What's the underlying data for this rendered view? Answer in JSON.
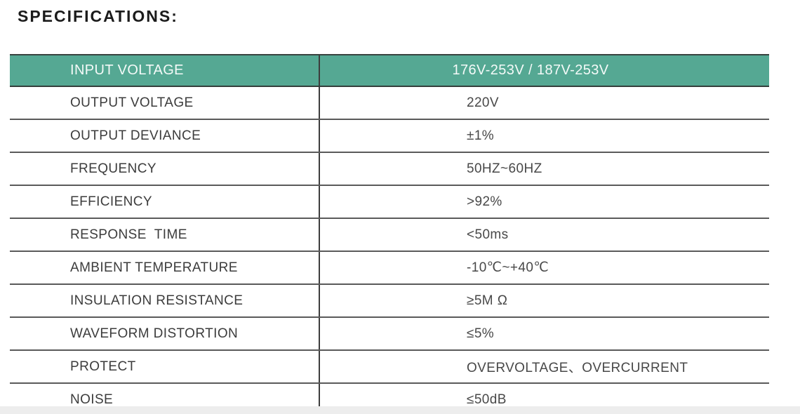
{
  "page": {
    "title": "SPECIFICATIONS:"
  },
  "colors": {
    "header_bg": "#55a893",
    "header_text": "#f4faf8",
    "row_border": "#5a5a5a",
    "table_bottom_border": "#7d7d7d",
    "label_text": "#3c3c3c",
    "value_text": "#484848"
  },
  "table": {
    "header": {
      "label": "INPUT VOLTAGE",
      "value": "176V-253V / 187V-253V"
    },
    "rows": [
      {
        "label": "OUTPUT VOLTAGE",
        "value": "220V"
      },
      {
        "label": "OUTPUT DEVIANCE",
        "value": "±1%"
      },
      {
        "label": "FREQUENCY",
        "value": "50HZ~60HZ"
      },
      {
        "label": "EFFICIENCY",
        "value": ">92%"
      },
      {
        "label": "RESPONSE  TIME",
        "value": "<50ms"
      },
      {
        "label": "AMBIENT TEMPERATURE",
        "value": "-10℃~+40℃"
      },
      {
        "label": "INSULATION RESISTANCE",
        "value": "≥5M Ω"
      },
      {
        "label": "WAVEFORM DISTORTION",
        "value": "≤5%"
      },
      {
        "label": "PROTECT",
        "value": "OVERVOLTAGE、OVERCURRENT"
      },
      {
        "label": "NOISE",
        "value": "≤50dB"
      }
    ]
  }
}
